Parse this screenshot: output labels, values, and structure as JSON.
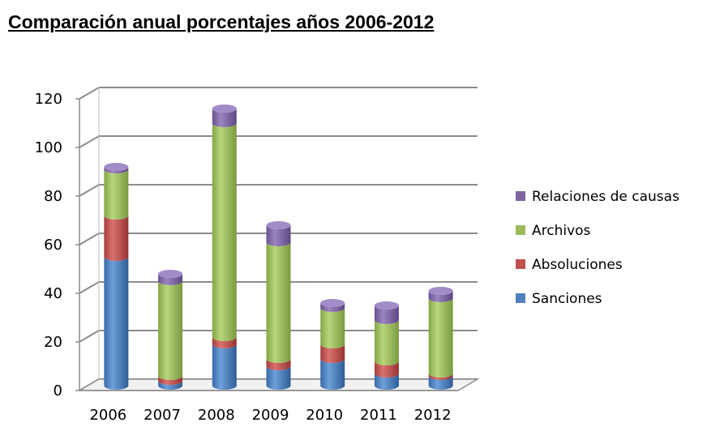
{
  "chart_data": {
    "type": "bar",
    "stacked": true,
    "three_d": true,
    "title": "Comparación anual porcentajes años 2006-2012",
    "categories": [
      "2006",
      "2007",
      "2008",
      "2009",
      "2010",
      "2011",
      "2012"
    ],
    "series": [
      {
        "name": "Sanciones",
        "color": "#4f81bd",
        "values": [
          53,
          2,
          17,
          8,
          11,
          5,
          4
        ]
      },
      {
        "name": "Absoluciones",
        "color": "#c0504d",
        "values": [
          17,
          2,
          3,
          3,
          6,
          5,
          1
        ]
      },
      {
        "name": "Archivos",
        "color": "#9bbb59",
        "values": [
          19,
          39,
          88,
          48,
          15,
          17,
          31
        ]
      },
      {
        "name": "Relaciones de causas",
        "color": "#8064a2",
        "values": [
          1,
          3,
          6,
          7,
          2,
          6,
          3
        ]
      }
    ],
    "y_ticks": [
      "0",
      "20",
      "40",
      "60",
      "80",
      "100",
      "120"
    ],
    "ylim": [
      0,
      120
    ],
    "grid": true,
    "legend_position": "right"
  }
}
